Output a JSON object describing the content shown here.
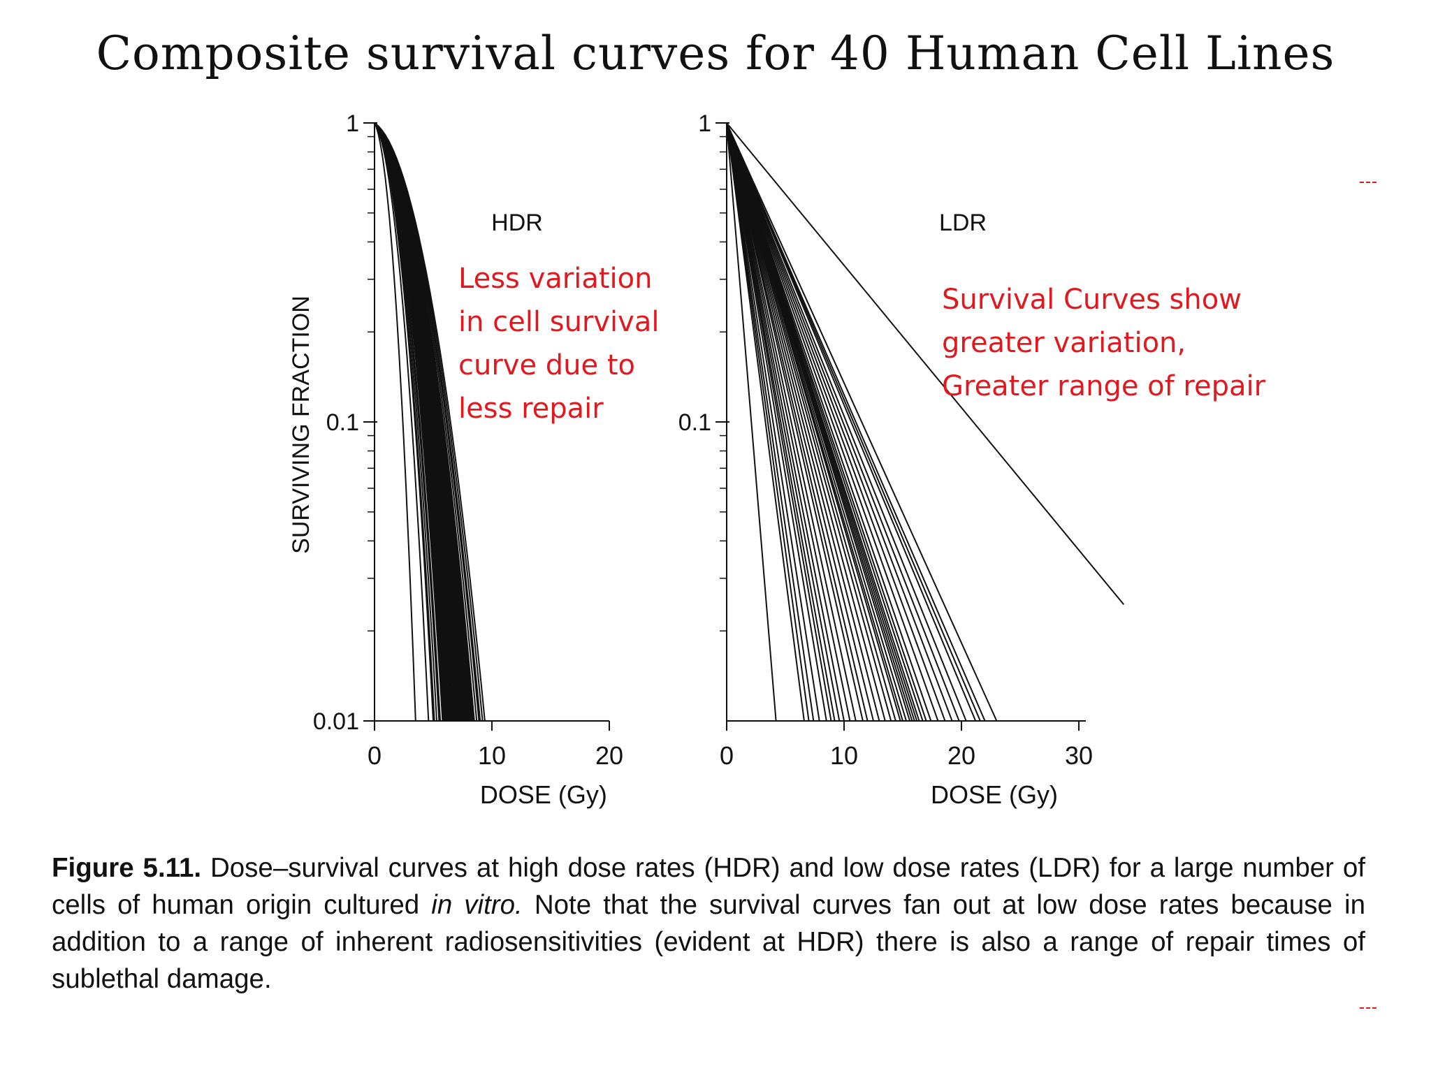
{
  "slide_title": "Composite survival curves for 40 Human Cell Lines",
  "annotations": {
    "hdr_note": [
      "Less variation",
      "in cell survival",
      "curve due to",
      "less repair"
    ],
    "ldr_note": [
      "Survival Curves show",
      "greater variation,",
      "Greater range of repair"
    ]
  },
  "caption": {
    "label": "Figure 5.11.",
    "text_before_italic": "Dose–survival curves at high dose rates (HDR) and low dose rates (LDR) for a large number of cells of human origin cultured",
    "italic": "in vitro.",
    "text_after_italic": "Note that the survival curves fan out at low dose rates because in addition to a range of inherent radiosensitivities (evident at HDR) there is also a range of repair times of sublethal damage."
  },
  "colors": {
    "annotation": "#e0191f",
    "curve": "#111111"
  },
  "chart_data": [
    {
      "type": "line",
      "panel_label": "HDR",
      "xlabel": "DOSE (Gy)",
      "ylabel": "SURVIVING FRACTION",
      "xlim": [
        0,
        20
      ],
      "ylim": [
        0.01,
        1
      ],
      "y_scale": "log",
      "x_ticks": [
        "0",
        "10",
        "20"
      ],
      "y_ticks": [
        "1",
        "0.1",
        "0.01"
      ],
      "curve_model": "quadratic-log",
      "curve_dose_at_0_01": [
        3.5,
        4.6,
        5.0,
        5.1,
        5.3,
        5.5,
        5.6,
        5.8,
        5.9,
        6.0,
        6.1,
        6.2,
        6.3,
        6.4,
        6.5,
        6.6,
        6.7,
        6.8,
        6.9,
        7.0,
        7.1,
        7.2,
        7.3,
        7.4,
        7.5,
        7.6,
        7.7,
        7.8,
        7.9,
        8.0,
        8.1,
        8.2,
        8.3,
        8.4,
        8.5,
        8.7,
        8.9,
        9.0,
        9.2,
        9.4
      ]
    },
    {
      "type": "line",
      "panel_label": "LDR",
      "xlabel": "DOSE (Gy)",
      "xlim": [
        0,
        30
      ],
      "ylim": [
        0.01,
        1
      ],
      "y_scale": "log",
      "x_ticks": [
        "0",
        "10",
        "20",
        "30"
      ],
      "y_ticks": [
        "1",
        "0.1"
      ],
      "curve_model": "linear-log",
      "curve_dose_at_0_01": [
        4.2,
        6.6,
        7.0,
        7.4,
        7.9,
        8.5,
        8.9,
        9.2,
        9.6,
        10.0,
        10.5,
        11.0,
        11.6,
        12.0,
        12.5,
        13.0,
        13.5,
        14.0,
        14.4,
        14.8,
        15.0,
        15.3,
        15.6,
        15.8,
        16.0,
        16.2,
        16.4,
        16.7,
        17.0,
        17.4,
        18.0,
        18.6,
        19.2,
        19.8,
        20.4,
        21.2,
        21.6,
        22.0,
        23.0,
        42.0
      ],
      "curve_end_survival": [
        0.01,
        0.01,
        0.01,
        0.01,
        0.01,
        0.01,
        0.01,
        0.01,
        0.01,
        0.01,
        0.01,
        0.01,
        0.01,
        0.01,
        0.01,
        0.01,
        0.01,
        0.01,
        0.01,
        0.01,
        0.01,
        0.01,
        0.01,
        0.01,
        0.01,
        0.01,
        0.01,
        0.01,
        0.01,
        0.01,
        0.01,
        0.01,
        0.01,
        0.01,
        0.01,
        0.01,
        0.01,
        0.01,
        0.01,
        0.0245
      ]
    }
  ]
}
